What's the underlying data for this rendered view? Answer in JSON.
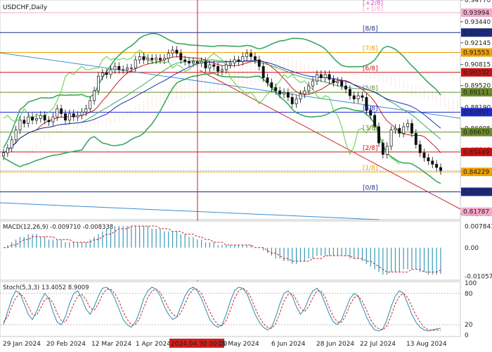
{
  "symbol_label": "USDCHF,Daily",
  "chart_data": {
    "type": "candlestick",
    "title": "USDCHF,Daily",
    "price_axis": {
      "range": [
        0.813,
        0.9477
      ],
      "ticks": [
        "0.94770",
        "0.93440",
        "0.92145",
        "0.90815",
        "0.89520",
        "0.88190",
        "0.86895",
        "0.85565",
        "0.84270",
        "0.82975",
        "0.81645"
      ]
    },
    "price_tags": [
      {
        "value": "0.93994",
        "price": 0.93994,
        "color": "#f5a8c8"
      },
      {
        "value": "0.92773",
        "price": 0.92773,
        "color": "#1a2a8a"
      },
      {
        "value": "0.91553",
        "price": 0.91553,
        "color": "#f0a000"
      },
      {
        "value": "0.90332",
        "price": 0.90332,
        "color": "#d01010"
      },
      {
        "value": "0.89111",
        "price": 0.89111,
        "color": "#6a8a2a"
      },
      {
        "value": "0.87891",
        "price": 0.87891,
        "color": "#1a2ad0"
      },
      {
        "value": "0.86670",
        "price": 0.8667,
        "color": "#6a8a2a"
      },
      {
        "value": "0.85449",
        "price": 0.85449,
        "color": "#d01010"
      },
      {
        "value": "0.84229",
        "price": 0.84229,
        "color": "#f0a000"
      },
      {
        "value": "0.83008",
        "price": 0.83008,
        "color": "#1a2a8a"
      },
      {
        "value": "0.81787",
        "price": 0.81787,
        "color": "#f5a8c8"
      }
    ],
    "current_price": 0.8432,
    "murray_levels": [
      {
        "label": "[+2/8]",
        "price": 0.9521,
        "color": "#d64fd6"
      },
      {
        "label": "[+1/8]",
        "price": 0.93994,
        "color": "#f5a8c8"
      },
      {
        "label": "[8/8]",
        "price": 0.92773,
        "color": "#1a2a8a"
      },
      {
        "label": "[7/8]",
        "price": 0.91553,
        "color": "#f0a000"
      },
      {
        "label": "[6/8]",
        "price": 0.90332,
        "color": "#d01010"
      },
      {
        "label": "[5/8]",
        "price": 0.89111,
        "color": "#6a8a2a"
      },
      {
        "label": "[4/8]",
        "price": 0.87891,
        "color": "#1a2ad0"
      },
      {
        "label": "[3/8]",
        "price": 0.8667,
        "color": "#6a8a2a"
      },
      {
        "label": "[2/8]",
        "price": 0.85449,
        "color": "#d01010"
      },
      {
        "label": "[1/8]",
        "price": 0.84229,
        "color": "#f0a000"
      },
      {
        "label": "[0/8]",
        "price": 0.83008,
        "color": "#1a2a8a"
      }
    ],
    "x_axis": {
      "labels": [
        "29 Jan 2024",
        "20 Feb 2024",
        "12 Mar 2024",
        "1 Apr 2024",
        "2024.04.30 00:00",
        "15 May 2024",
        "6 Jun 2024",
        "28 Jun 2024",
        "22 Jul 2024",
        "13 Aug 2024"
      ],
      "highlight": "2024.04.30 00:00"
    },
    "candles": [
      0.854,
      0.857,
      0.862,
      0.868,
      0.874,
      0.872,
      0.876,
      0.874,
      0.875,
      0.877,
      0.874,
      0.873,
      0.876,
      0.881,
      0.878,
      0.874,
      0.878,
      0.876,
      0.877,
      0.879,
      0.881,
      0.886,
      0.892,
      0.901,
      0.903,
      0.902,
      0.905,
      0.907,
      0.905,
      0.905,
      0.906,
      0.906,
      0.911,
      0.913,
      0.911,
      0.912,
      0.911,
      0.912,
      0.911,
      0.912,
      0.915,
      0.917,
      0.915,
      0.911,
      0.91,
      0.909,
      0.91,
      0.909,
      0.91,
      0.906,
      0.908,
      0.907,
      0.904,
      0.905,
      0.908,
      0.909,
      0.911,
      0.91,
      0.913,
      0.915,
      0.913,
      0.911,
      0.907,
      0.9,
      0.897,
      0.894,
      0.892,
      0.89,
      0.891,
      0.888,
      0.884,
      0.887,
      0.89,
      0.892,
      0.895,
      0.898,
      0.902,
      0.9,
      0.902,
      0.899,
      0.897,
      0.898,
      0.895,
      0.893,
      0.889,
      0.887,
      0.889,
      0.888,
      0.88,
      0.877,
      0.87,
      0.86,
      0.853,
      0.858,
      0.868,
      0.869,
      0.866,
      0.87,
      0.872,
      0.866,
      0.859,
      0.854,
      0.851,
      0.849,
      0.847,
      0.845,
      0.843
    ],
    "macd": {
      "label": "MACD(12,26,9) -0.009710 -0.008338",
      "ticks": [
        "0.007843",
        "0.00",
        "-0.010574"
      ],
      "range": [
        -0.0115,
        0.0088
      ],
      "histogram": [
        0.0,
        0.001,
        0.002,
        0.003,
        0.004,
        0.004,
        0.005,
        0.005,
        0.005,
        0.004,
        0.004,
        0.003,
        0.003,
        0.003,
        0.003,
        0.002,
        0.002,
        0.002,
        0.002,
        0.002,
        0.002,
        0.003,
        0.004,
        0.005,
        0.006,
        0.007,
        0.007,
        0.008,
        0.008,
        0.008,
        0.008,
        0.008,
        0.008,
        0.008,
        0.008,
        0.008,
        0.007,
        0.007,
        0.007,
        0.006,
        0.006,
        0.006,
        0.006,
        0.005,
        0.005,
        0.004,
        0.004,
        0.003,
        0.003,
        0.002,
        0.002,
        0.002,
        0.001,
        0.001,
        0.001,
        0.001,
        0.001,
        0.001,
        0.001,
        0.001,
        0.001,
        0.0,
        0.0,
        -0.001,
        -0.002,
        -0.003,
        -0.004,
        -0.004,
        -0.005,
        -0.005,
        -0.006,
        -0.006,
        -0.005,
        -0.005,
        -0.004,
        -0.004,
        -0.003,
        -0.003,
        -0.003,
        -0.003,
        -0.003,
        -0.003,
        -0.003,
        -0.003,
        -0.004,
        -0.004,
        -0.004,
        -0.005,
        -0.006,
        -0.007,
        -0.008,
        -0.009,
        -0.01,
        -0.01,
        -0.009,
        -0.009,
        -0.009,
        -0.008,
        -0.008,
        -0.008,
        -0.008,
        -0.009,
        -0.009,
        -0.01,
        -0.01,
        -0.01,
        -0.0097
      ],
      "signal": [
        0.0,
        0.0,
        0.001,
        0.001,
        0.002,
        0.003,
        0.003,
        0.004,
        0.004,
        0.004,
        0.004,
        0.004,
        0.004,
        0.003,
        0.003,
        0.003,
        0.003,
        0.002,
        0.002,
        0.002,
        0.002,
        0.002,
        0.003,
        0.003,
        0.004,
        0.005,
        0.005,
        0.006,
        0.007,
        0.007,
        0.007,
        0.008,
        0.008,
        0.008,
        0.008,
        0.008,
        0.008,
        0.008,
        0.007,
        0.007,
        0.007,
        0.006,
        0.006,
        0.006,
        0.005,
        0.005,
        0.005,
        0.004,
        0.004,
        0.003,
        0.003,
        0.002,
        0.002,
        0.002,
        0.001,
        0.001,
        0.001,
        0.001,
        0.001,
        0.001,
        0.001,
        0.0,
        0.0,
        0.0,
        -0.001,
        -0.002,
        -0.002,
        -0.003,
        -0.004,
        -0.004,
        -0.005,
        -0.005,
        -0.005,
        -0.005,
        -0.005,
        -0.004,
        -0.004,
        -0.004,
        -0.003,
        -0.003,
        -0.003,
        -0.003,
        -0.003,
        -0.003,
        -0.003,
        -0.004,
        -0.004,
        -0.004,
        -0.005,
        -0.005,
        -0.006,
        -0.007,
        -0.008,
        -0.009,
        -0.009,
        -0.009,
        -0.009,
        -0.009,
        -0.009,
        -0.008,
        -0.008,
        -0.008,
        -0.009,
        -0.009,
        -0.009,
        -0.009,
        -0.0083
      ]
    },
    "stoch": {
      "label": "Stoch(5,3,3) 13.4052 8.9009",
      "ticks": [
        "100",
        "80",
        "20",
        "0"
      ],
      "levels": [
        80,
        20
      ],
      "main": [
        20,
        45,
        70,
        85,
        80,
        60,
        40,
        30,
        45,
        65,
        80,
        70,
        45,
        25,
        20,
        35,
        60,
        80,
        85,
        70,
        50,
        40,
        55,
        75,
        90,
        92,
        85,
        70,
        50,
        30,
        20,
        15,
        25,
        45,
        70,
        85,
        92,
        88,
        75,
        55,
        40,
        30,
        35,
        55,
        75,
        88,
        92,
        85,
        70,
        50,
        30,
        20,
        15,
        20,
        40,
        65,
        85,
        92,
        90,
        80,
        60,
        40,
        25,
        15,
        10,
        15,
        35,
        60,
        80,
        85,
        75,
        55,
        40,
        50,
        70,
        85,
        90,
        80,
        60,
        40,
        25,
        20,
        30,
        50,
        70,
        80,
        75,
        55,
        35,
        20,
        10,
        8,
        12,
        30,
        55,
        75,
        85,
        80,
        60,
        40,
        25,
        15,
        10,
        8,
        10,
        12,
        13.4
      ],
      "signal": [
        25,
        35,
        55,
        72,
        80,
        72,
        55,
        40,
        38,
        52,
        68,
        72,
        62,
        42,
        28,
        25,
        40,
        60,
        75,
        78,
        68,
        52,
        48,
        60,
        78,
        88,
        88,
        80,
        65,
        45,
        30,
        20,
        20,
        32,
        52,
        72,
        85,
        88,
        82,
        68,
        52,
        40,
        35,
        42,
        60,
        78,
        88,
        88,
        80,
        62,
        45,
        30,
        20,
        18,
        28,
        48,
        70,
        85,
        90,
        85,
        72,
        52,
        35,
        22,
        15,
        13,
        22,
        42,
        65,
        78,
        80,
        68,
        52,
        45,
        55,
        72,
        85,
        85,
        72,
        52,
        35,
        25,
        25,
        38,
        58,
        72,
        75,
        65,
        48,
        30,
        18,
        12,
        10,
        18,
        38,
        60,
        75,
        80,
        72,
        55,
        38,
        25,
        15,
        10,
        9,
        10,
        8.9
      ]
    }
  }
}
